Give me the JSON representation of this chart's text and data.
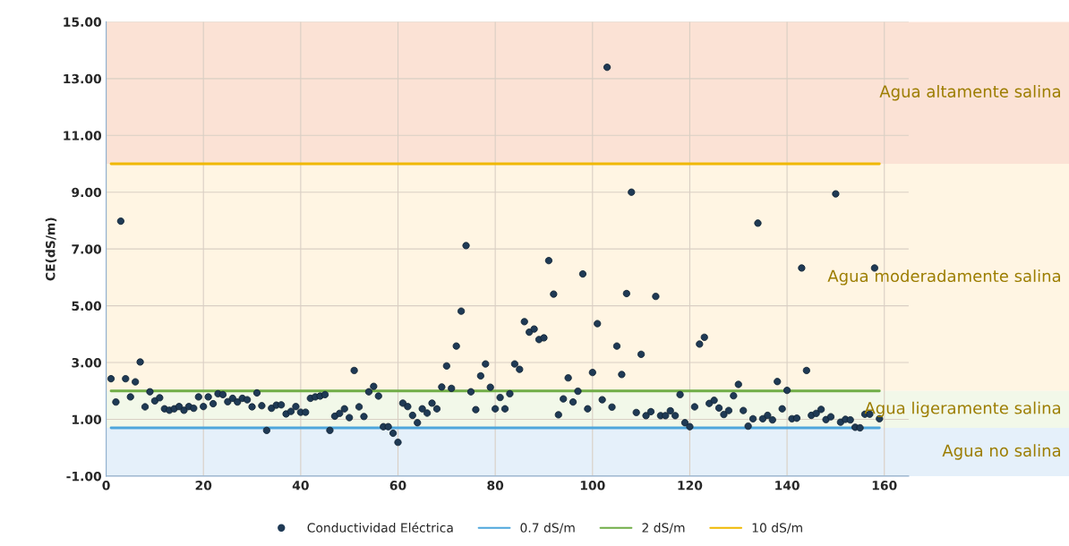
{
  "chart_data": {
    "type": "scatter",
    "ylabel": "CE(dS/m)",
    "xlim": [
      0,
      165
    ],
    "xticks": [
      0,
      20,
      40,
      60,
      80,
      100,
      120,
      140,
      160
    ],
    "ylim": [
      -1,
      15
    ],
    "yticks": [
      {
        "value": -1,
        "label": "-1.00"
      },
      {
        "value": 1,
        "label": "1.00"
      },
      {
        "value": 3,
        "label": "3.00"
      },
      {
        "value": 5,
        "label": "5.00"
      },
      {
        "value": 7,
        "label": "7.00"
      },
      {
        "value": 9,
        "label": "9.00"
      },
      {
        "value": 11,
        "label": "11.00"
      },
      {
        "value": 13,
        "label": "13.00"
      },
      {
        "value": 15,
        "label": "15.00"
      }
    ],
    "grid": true,
    "legend": "bottom",
    "series": [
      {
        "name": "Conductividad Eléctrica",
        "marker": "circle",
        "color": "#1f3a55",
        "x": [
          1,
          2,
          3,
          4,
          5,
          6,
          7,
          8,
          9,
          10,
          11,
          12,
          13,
          14,
          15,
          16,
          17,
          18,
          19,
          20,
          21,
          22,
          23,
          24,
          25,
          26,
          27,
          28,
          29,
          30,
          31,
          32,
          33,
          34,
          35,
          36,
          37,
          38,
          39,
          40,
          41,
          42,
          43,
          44,
          45,
          46,
          47,
          48,
          49,
          50,
          51,
          52,
          53,
          54,
          55,
          56,
          57,
          58,
          59,
          60,
          61,
          62,
          63,
          64,
          65,
          66,
          67,
          68,
          69,
          70,
          71,
          72,
          73,
          74,
          75,
          76,
          77,
          78,
          79,
          80,
          81,
          82,
          83,
          84,
          85,
          86,
          87,
          88,
          89,
          90,
          91,
          92,
          93,
          94,
          95,
          96,
          97,
          98,
          99,
          100,
          101,
          102,
          103,
          104,
          105,
          106,
          107,
          108,
          109,
          110,
          111,
          112,
          113,
          114,
          115,
          116,
          117,
          118,
          119,
          120,
          121,
          122,
          123,
          124,
          125,
          126,
          127,
          128,
          129,
          130,
          131,
          132,
          133,
          134,
          135,
          136,
          137,
          138,
          139,
          140,
          141,
          142,
          143,
          144,
          145,
          146,
          147,
          148,
          149,
          150,
          151,
          152,
          153,
          154,
          155,
          156,
          157,
          158,
          159
        ],
        "values": [
          2.43,
          1.61,
          7.98,
          2.43,
          1.79,
          2.32,
          3.02,
          1.44,
          1.97,
          1.65,
          1.76,
          1.37,
          1.32,
          1.37,
          1.45,
          1.32,
          1.45,
          1.39,
          1.79,
          1.45,
          1.79,
          1.55,
          1.9,
          1.87,
          1.62,
          1.74,
          1.61,
          1.74,
          1.69,
          1.44,
          1.93,
          1.48,
          0.61,
          1.39,
          1.5,
          1.51,
          1.19,
          1.28,
          1.45,
          1.25,
          1.25,
          1.74,
          1.79,
          1.82,
          1.87,
          0.61,
          1.11,
          1.21,
          1.37,
          1.06,
          2.72,
          1.44,
          1.1,
          1.97,
          2.16,
          1.82,
          0.74,
          0.74,
          0.51,
          0.19,
          1.57,
          1.45,
          1.14,
          0.88,
          1.37,
          1.22,
          1.57,
          1.37,
          2.14,
          2.88,
          2.09,
          3.58,
          4.81,
          7.12,
          1.97,
          1.34,
          2.53,
          2.95,
          2.13,
          1.37,
          1.77,
          1.37,
          1.9,
          2.95,
          2.76,
          4.44,
          4.07,
          4.18,
          3.81,
          3.87,
          6.59,
          5.41,
          1.16,
          1.72,
          2.46,
          1.61,
          1.99,
          6.12,
          1.37,
          2.65,
          4.37,
          1.69,
          13.4,
          1.43,
          3.58,
          2.58,
          5.43,
          9.0,
          1.24,
          3.29,
          1.13,
          1.27,
          5.33,
          1.13,
          1.13,
          1.3,
          1.13,
          1.87,
          0.88,
          0.74,
          1.44,
          3.65,
          3.89,
          1.56,
          1.67,
          1.4,
          1.17,
          1.31,
          1.83,
          2.23,
          1.31,
          0.76,
          1.02,
          7.91,
          1.02,
          1.14,
          0.98,
          2.33,
          1.37,
          2.02,
          1.02,
          1.04,
          6.33,
          2.72,
          1.14,
          1.21,
          1.35,
          0.99,
          1.09,
          8.94,
          0.9,
          1.0,
          0.98,
          0.72,
          0.7,
          1.18,
          1.18,
          6.33,
          1.02
        ]
      },
      {
        "name": "0.7 dS/m",
        "type": "line",
        "color": "#4ea6dc",
        "x": [
          1,
          159
        ],
        "values": [
          0.7,
          0.7
        ]
      },
      {
        "name": "2 dS/m",
        "type": "line",
        "color": "#70ad47",
        "x": [
          1,
          159
        ],
        "values": [
          2,
          2
        ]
      },
      {
        "name": "10 dS/m",
        "type": "line",
        "color": "#f0b800",
        "x": [
          1,
          159
        ],
        "values": [
          10,
          10
        ]
      }
    ],
    "bands": [
      {
        "axis": "y",
        "from": 10,
        "to": 15,
        "label": "Agua altamente salina",
        "color": "#fbe2d5"
      },
      {
        "axis": "y",
        "from": 2,
        "to": 10,
        "label": "Agua moderadamente salina",
        "color": "#fff5e3"
      },
      {
        "axis": "y",
        "from": 0.7,
        "to": 2,
        "label": "Agua ligeramente salina",
        "color": "#f2f8e9"
      },
      {
        "axis": "y",
        "from": -1,
        "to": 0.7,
        "label": "Agua no salina",
        "color": "#e5f0fa"
      }
    ]
  }
}
